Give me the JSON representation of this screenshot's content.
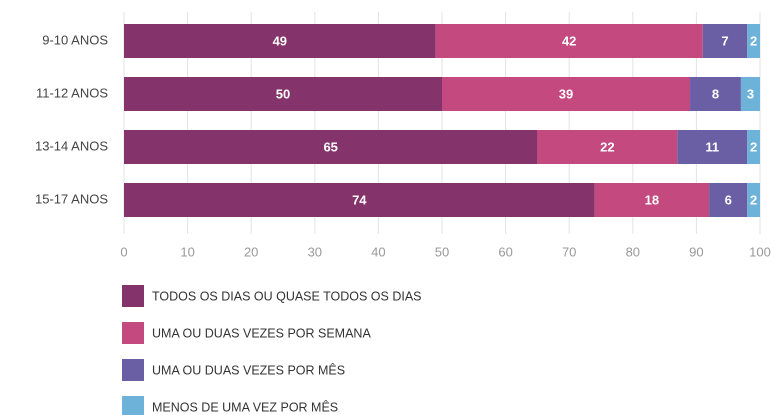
{
  "chart_data": {
    "type": "bar",
    "orientation": "horizontal",
    "stacked": true,
    "categories": [
      "9-10 ANOS",
      "11-12 ANOS",
      "13-14 ANOS",
      "15-17 ANOS"
    ],
    "series": [
      {
        "name": "TODOS OS DIAS OU QUASE TODOS OS DIAS",
        "color": "#84336b",
        "values": [
          49,
          50,
          65,
          74
        ]
      },
      {
        "name": "UMA OU DUAS VEZES POR SEMANA",
        "color": "#c4497f",
        "values": [
          42,
          39,
          22,
          18
        ]
      },
      {
        "name": "UMA OU DUAS VEZES POR MÊS",
        "color": "#6a5ea5",
        "values": [
          7,
          8,
          11,
          6
        ]
      },
      {
        "name": "MENOS DE UMA VEZ POR MÊS",
        "color": "#6db3d9",
        "values": [
          2,
          3,
          2,
          2
        ]
      }
    ],
    "xlim": [
      0,
      100
    ],
    "xticks": [
      0,
      10,
      20,
      30,
      40,
      50,
      60,
      70,
      80,
      90,
      100
    ],
    "grid": true,
    "legend": "bottom"
  }
}
